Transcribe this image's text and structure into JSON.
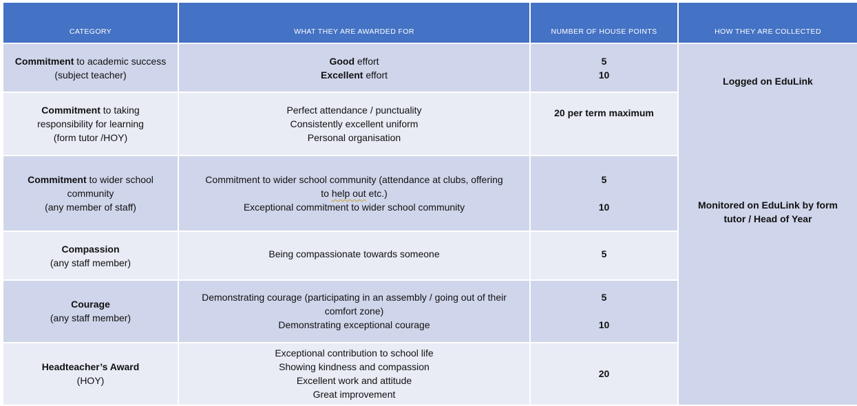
{
  "headers": {
    "category": "CATEGORY",
    "awarded_for": "WHAT THEY ARE AWARDED FOR",
    "points": "NUMBER OF HOUSE POINTS",
    "collected": "HOW THEY ARE COLLECTED"
  },
  "rows": [
    {
      "category_bold": "Commitment",
      "category_rest": " to academic success",
      "category_note": "(subject teacher)",
      "award1_bold": "Good",
      "award1_rest": " effort",
      "award2_bold": "Excellent",
      "award2_rest": " effort",
      "points": [
        "5",
        "10"
      ]
    },
    {
      "category_bold": "Commitment",
      "category_rest": " to taking",
      "category_line2": "responsibility for learning",
      "category_note": "(form tutor /HOY)",
      "awards": [
        "Perfect attendance / punctuality",
        "Consistently excellent uniform",
        "Personal organisation"
      ],
      "points": [
        "20 per term maximum"
      ]
    },
    {
      "category_bold": "Commitment",
      "category_rest": " to wider school",
      "category_line2": "community",
      "category_note": "(any member of staff)",
      "award1_line1": "Commitment to wider school community (attendance at clubs, offering",
      "award1_line2_a": "to ",
      "award1_line2_squig": "help out",
      "award1_line2_b": " etc.)",
      "award2": "Exceptional commitment to wider school community",
      "points": [
        "5",
        "10"
      ]
    },
    {
      "category_bold": "Compassion",
      "category_note": "(any staff member)",
      "awards": [
        "Being compassionate towards someone"
      ],
      "points": [
        "5"
      ]
    },
    {
      "category_bold": "Courage",
      "category_note": "(any staff member)",
      "award1_line1": "Demonstrating courage (participating in an assembly / going out of their",
      "award1_line2": "comfort zone)",
      "award2": "Demonstrating exceptional courage",
      "points": [
        "5",
        "10"
      ]
    },
    {
      "category_bold": "Headteacher’s Award",
      "category_note": "(HOY)",
      "awards": [
        "Exceptional contribution to school life",
        "Showing kindness and compassion",
        "Excellent work and attitude",
        "Great improvement"
      ],
      "points": [
        "20"
      ]
    }
  ],
  "collected": {
    "first": "Logged on EduLink",
    "second_line1": "Monitored on EduLink by form",
    "second_line2": "tutor / Head of Year"
  },
  "colors": {
    "header_bg": "#4472c4",
    "row_dark": "#cfd5ea",
    "row_light": "#e9ebf5",
    "border": "#ffffff"
  }
}
